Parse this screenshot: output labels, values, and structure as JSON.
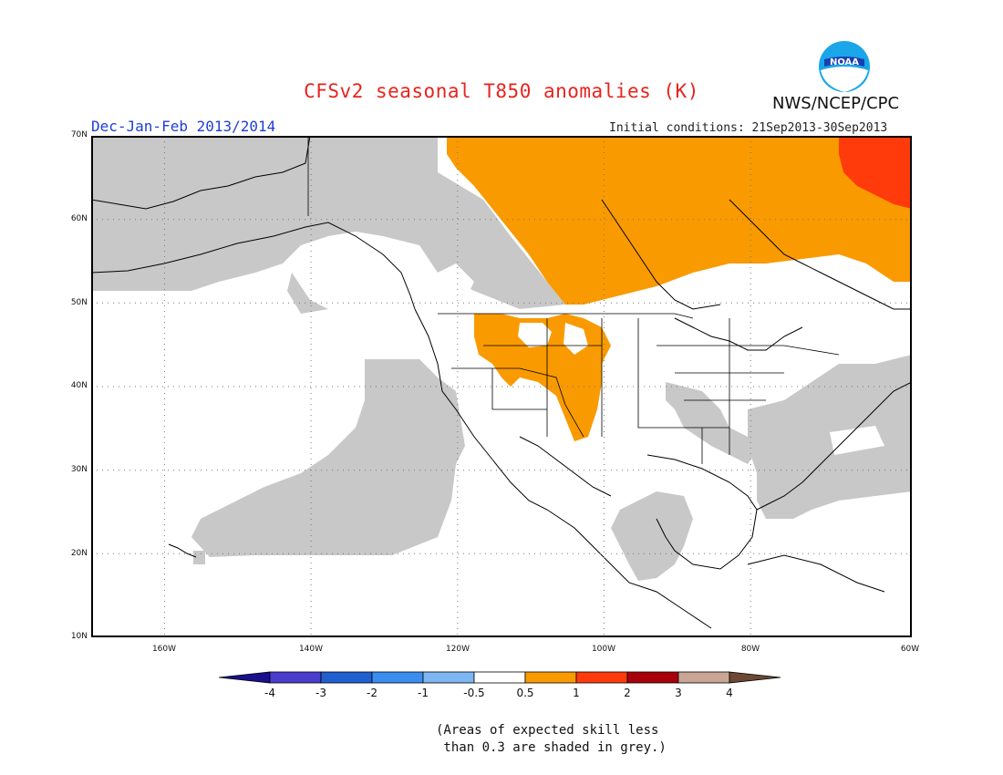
{
  "title": "CFSv2 seasonal T850 anomalies (K)",
  "season": "Dec-Jan-Feb 2013/2014",
  "initial_conditions": "Initial conditions: 21Sep2013-30Sep2013",
  "agency": "NWS/NCEP/CPC",
  "logo_text": "NOAA",
  "map": {
    "region": "North America and eastern North Pacific",
    "lon_range": [
      -172,
      -60
    ],
    "lat_range": [
      10,
      70
    ],
    "lat_labels": [
      "70N",
      "60N",
      "50N",
      "40N",
      "30N",
      "20N",
      "10N"
    ],
    "lon_labels": [
      "160W",
      "140W",
      "120W",
      "100W",
      "80W",
      "60W"
    ],
    "grid": "dotted"
  },
  "colorbar": {
    "labels": [
      "-4",
      "-3",
      "-2",
      "-1",
      "-0.5",
      "0.5",
      "1",
      "2",
      "3",
      "4"
    ],
    "colors": [
      "#1a0f8c",
      "#4a3ccc",
      "#1f5fd0",
      "#3b8ef0",
      "#7db6f2",
      "#ffffff",
      "#f99a00",
      "#ff3b0b",
      "#a8000a",
      "#c9a595",
      "#6e4735"
    ]
  },
  "colors": {
    "grey_low_skill": "#c8c8c8",
    "anomaly_0p5_1": "#f99a00",
    "anomaly_1_2": "#ff3b0b"
  },
  "footnote": {
    "line1": "(Areas of expected skill less",
    "line2": " than 0.3 are shaded in grey.)"
  }
}
